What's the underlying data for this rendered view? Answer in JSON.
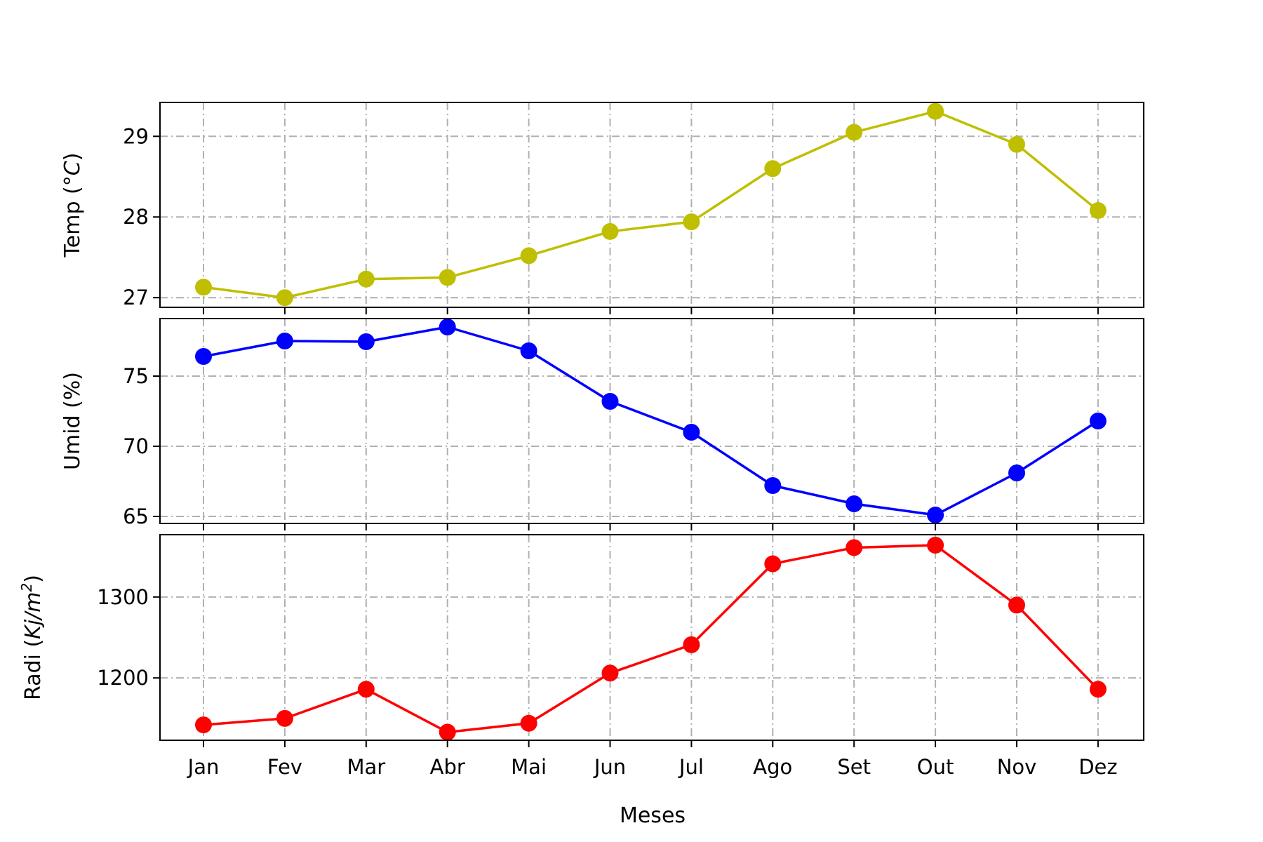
{
  "chart_data": {
    "type": "line",
    "title": "",
    "xlabel": "Meses",
    "categories": [
      "Jan",
      "Fev",
      "Mar",
      "Abr",
      "Mai",
      "Jun",
      "Jul",
      "Ago",
      "Set",
      "Out",
      "Nov",
      "Dez"
    ],
    "grid": true,
    "legend": "none",
    "panels": [
      {
        "name": "temp",
        "ylabel": "Temp (°C)",
        "ylabel_parts": [
          {
            "text": "Temp (°",
            "italic": false
          },
          {
            "text": "C",
            "italic": true
          },
          {
            "text": ")",
            "italic": false
          }
        ],
        "color": "#bfbf00",
        "ylim": [
          26.88,
          29.42
        ],
        "yticks": [
          27,
          28,
          29
        ],
        "ytick_labels": [
          "27",
          "28",
          "29"
        ],
        "values": [
          27.13,
          27.0,
          27.23,
          27.25,
          27.52,
          27.82,
          27.94,
          28.6,
          29.05,
          29.31,
          28.9,
          28.08
        ]
      },
      {
        "name": "umid",
        "ylabel": "Umid (%)",
        "ylabel_parts": [
          {
            "text": "Umid (%)",
            "italic": false
          }
        ],
        "color": "#0000ff",
        "ylim": [
          64.5,
          79.1
        ],
        "yticks": [
          65,
          70,
          75
        ],
        "ytick_labels": [
          "65",
          "70",
          "75"
        ],
        "values": [
          76.4,
          77.5,
          77.45,
          78.5,
          76.8,
          73.2,
          71.0,
          67.2,
          65.9,
          65.1,
          68.1,
          71.8
        ]
      },
      {
        "name": "radi",
        "ylabel": "Radi (Kj/m2)",
        "ylabel_parts": [
          {
            "text": "Radi (",
            "italic": false
          },
          {
            "text": "Kj/m",
            "italic": true
          },
          {
            "text": "2",
            "italic": true,
            "superscript": true
          },
          {
            "text": ")",
            "italic": false
          }
        ],
        "color": "#ff0000",
        "ylim": [
          1123,
          1377
        ],
        "yticks": [
          1200,
          1300
        ],
        "ytick_labels": [
          "1200",
          "1300"
        ],
        "values": [
          1142,
          1150,
          1186,
          1133,
          1144,
          1206,
          1241,
          1341,
          1361,
          1364,
          1290,
          1186
        ]
      }
    ]
  }
}
